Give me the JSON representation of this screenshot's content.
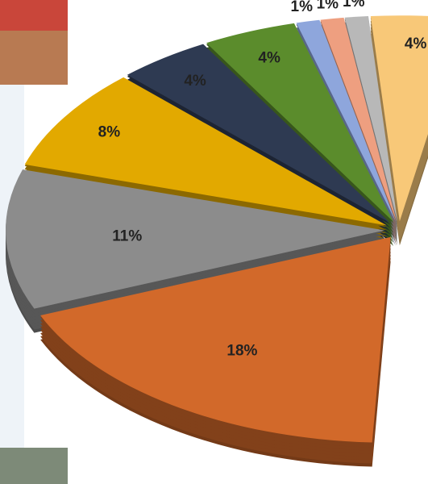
{
  "chart_data": {
    "type": "pie",
    "values": [
      4,
      1,
      1,
      1,
      4,
      4,
      8,
      11,
      18
    ],
    "value_labels": [
      "4%",
      "1%",
      "1%",
      "1%",
      "4%",
      "4%",
      "8%",
      "11%",
      "18%"
    ],
    "colors": [
      "#f8c878",
      "#b8b8b8",
      "#ee9f80",
      "#8ea6dc",
      "#5b8c2c",
      "#2e3a52",
      "#e2a900",
      "#8c8c8c",
      "#d2692a"
    ]
  }
}
